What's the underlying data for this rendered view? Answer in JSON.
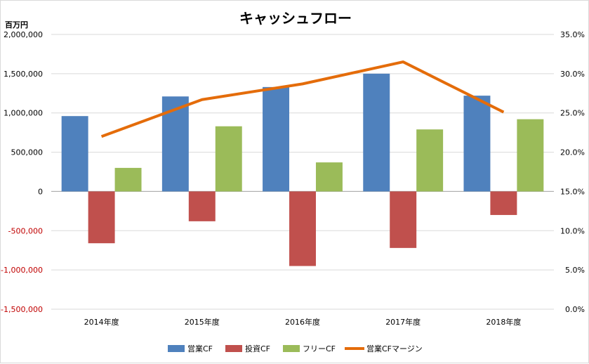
{
  "chart_data": {
    "type": "bar",
    "title": "キャッシュフロー",
    "y_unit_label": "百万円",
    "categories": [
      "2014年度",
      "2015年度",
      "2016年度",
      "2017年度",
      "2018年度"
    ],
    "series": [
      {
        "name": "営業CF",
        "kind": "bar",
        "axis": "left",
        "color": "#4f81bd",
        "values": [
          960000,
          1210000,
          1330000,
          1500000,
          1220000
        ]
      },
      {
        "name": "投資CF",
        "kind": "bar",
        "axis": "left",
        "color": "#c0504d",
        "values": [
          -660000,
          -380000,
          -950000,
          -720000,
          -300000
        ]
      },
      {
        "name": "フリーCF",
        "kind": "bar",
        "axis": "left",
        "color": "#9bbb59",
        "values": [
          300000,
          830000,
          370000,
          790000,
          920000
        ]
      },
      {
        "name": "営業CFマージン",
        "kind": "line",
        "axis": "right",
        "color": "#e46c0a",
        "values": [
          0.22,
          0.267,
          0.287,
          0.315,
          0.251
        ]
      }
    ],
    "y_left": {
      "min": -1500000,
      "max": 2000000,
      "step": 500000,
      "tick_labels": [
        "-1,500,000",
        "-1,000,000",
        "-500,000",
        "0",
        "500,000",
        "1,000,000",
        "1,500,000",
        "2,000,000"
      ],
      "negative_color": "#c00000"
    },
    "y_right": {
      "min": 0,
      "max": 0.35,
      "step": 0.05,
      "tick_labels": [
        "0.0%",
        "5.0%",
        "10.0%",
        "15.0%",
        "20.0%",
        "25.0%",
        "30.0%",
        "35.0%"
      ]
    },
    "grid": true,
    "legend_position": "bottom"
  }
}
